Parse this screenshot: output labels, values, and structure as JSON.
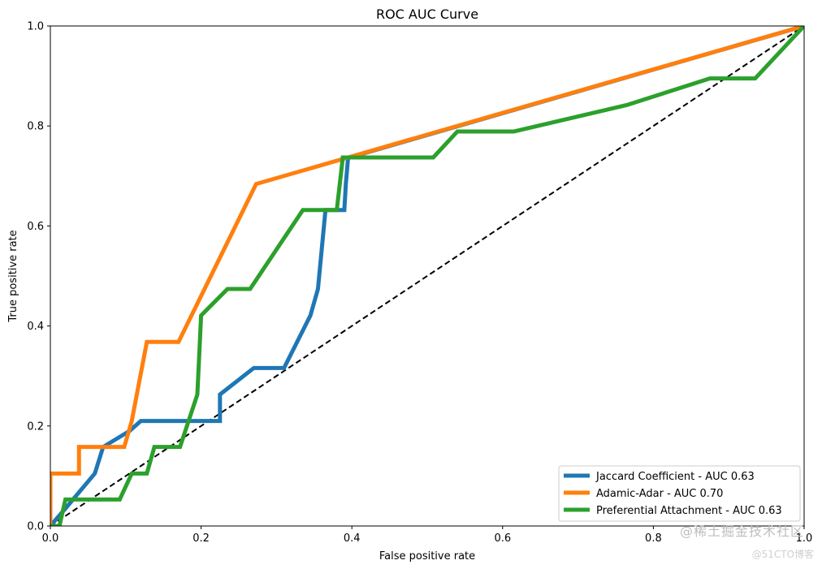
{
  "chart_data": {
    "type": "line",
    "title": "ROC AUC Curve",
    "xlabel": "False positive rate",
    "ylabel": "True positive rate",
    "xlim": [
      0,
      1
    ],
    "ylim": [
      0,
      1
    ],
    "xticks": [
      {
        "value": 0.0,
        "label": "0.0"
      },
      {
        "value": 0.2,
        "label": "0.2"
      },
      {
        "value": 0.4,
        "label": "0.4"
      },
      {
        "value": 0.6,
        "label": "0.6"
      },
      {
        "value": 0.8,
        "label": "0.8"
      },
      {
        "value": 1.0,
        "label": "1.0"
      }
    ],
    "yticks": [
      {
        "value": 0.0,
        "label": "0.0"
      },
      {
        "value": 0.2,
        "label": "0.2"
      },
      {
        "value": 0.4,
        "label": "0.4"
      },
      {
        "value": 0.6,
        "label": "0.6"
      },
      {
        "value": 0.8,
        "label": "0.8"
      },
      {
        "value": 1.0,
        "label": "1.0"
      }
    ],
    "legend_position": "lower-right",
    "diagonal": {
      "x": [
        0,
        1
      ],
      "y": [
        0,
        1
      ],
      "color": "#000000",
      "style": "dashed"
    },
    "series": [
      {
        "name": "Jaccard Coefficient - AUC 0.63",
        "color": "#1f77b4",
        "x": [
          0.0,
          0.02,
          0.059,
          0.07,
          0.105,
          0.12,
          0.225,
          0.225,
          0.27,
          0.31,
          0.345,
          0.355,
          0.365,
          0.39,
          0.392,
          0.395,
          0.397,
          1.0
        ],
        "y": [
          0.0,
          0.035,
          0.105,
          0.158,
          0.19,
          0.21,
          0.21,
          0.263,
          0.316,
          0.316,
          0.421,
          0.474,
          0.632,
          0.632,
          0.684,
          0.737,
          0.737,
          1.0
        ]
      },
      {
        "name": "Adamic-Adar - AUC 0.70",
        "color": "#ff7f0e",
        "x": [
          0.0,
          0.0,
          0.003,
          0.038,
          0.038,
          0.098,
          0.108,
          0.128,
          0.17,
          0.273,
          1.0
        ],
        "y": [
          0.0,
          0.105,
          0.105,
          0.105,
          0.158,
          0.158,
          0.21,
          0.368,
          0.368,
          0.684,
          1.0
        ]
      },
      {
        "name": "Preferential Attachment - AUC 0.63",
        "color": "#2ca02c",
        "x": [
          0.0,
          0.012,
          0.02,
          0.092,
          0.108,
          0.128,
          0.138,
          0.172,
          0.195,
          0.2,
          0.235,
          0.265,
          0.335,
          0.38,
          0.388,
          0.508,
          0.54,
          0.615,
          0.765,
          0.875,
          0.935,
          1.0
        ],
        "y": [
          0.0,
          0.0,
          0.053,
          0.053,
          0.105,
          0.105,
          0.158,
          0.158,
          0.263,
          0.421,
          0.474,
          0.474,
          0.632,
          0.632,
          0.737,
          0.737,
          0.789,
          0.789,
          0.842,
          0.895,
          0.895,
          1.0
        ]
      }
    ]
  },
  "watermark": {
    "line1": "@稀土掘金技术社区",
    "line2": "@51CTO博客"
  }
}
